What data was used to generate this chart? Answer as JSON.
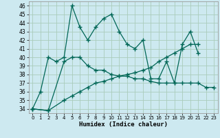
{
  "title": "",
  "xlabel": "Humidex (Indice chaleur)",
  "bg_color": "#cde9f0",
  "line_color": "#006655",
  "grid_color": "#aaccbb",
  "xlim": [
    -0.5,
    23.5
  ],
  "ylim": [
    33.5,
    46.5
  ],
  "yticks": [
    34,
    35,
    36,
    37,
    38,
    39,
    40,
    41,
    42,
    43,
    44,
    45,
    46
  ],
  "xticks": [
    0,
    1,
    2,
    3,
    4,
    5,
    6,
    7,
    8,
    9,
    10,
    11,
    12,
    13,
    14,
    15,
    16,
    17,
    18,
    19,
    20,
    21,
    22,
    23
  ],
  "line1_x": [
    0,
    1,
    2,
    3,
    4,
    5,
    6,
    7,
    8,
    9,
    10,
    11,
    12,
    13,
    14,
    15,
    16,
    17,
    18,
    19,
    20,
    21
  ],
  "line1_y": [
    34.0,
    36.0,
    40.0,
    39.5,
    40.0,
    46.0,
    43.5,
    42.0,
    43.5,
    44.5,
    45.0,
    43.0,
    41.5,
    41.0,
    42.0,
    37.5,
    37.5,
    39.5,
    37.0,
    41.5,
    43.0,
    40.5
  ],
  "line2_x": [
    0,
    2,
    4,
    5,
    6,
    7,
    8,
    9,
    10,
    11,
    12,
    13,
    14,
    15,
    16,
    17,
    18,
    19,
    20,
    21,
    22,
    23
  ],
  "line2_y": [
    34.0,
    33.8,
    39.5,
    40.0,
    40.0,
    39.0,
    38.5,
    38.5,
    38.0,
    37.8,
    37.8,
    37.5,
    37.5,
    37.2,
    37.0,
    37.0,
    37.0,
    37.0,
    37.0,
    37.0,
    36.5,
    36.5
  ],
  "line3_x": [
    0,
    2,
    4,
    5,
    6,
    7,
    8,
    9,
    10,
    11,
    12,
    13,
    14,
    15,
    16,
    17,
    18,
    19,
    20,
    21
  ],
  "line3_y": [
    34.0,
    33.8,
    35.0,
    35.5,
    36.0,
    36.5,
    37.0,
    37.2,
    37.5,
    37.8,
    38.0,
    38.2,
    38.5,
    38.8,
    39.5,
    40.0,
    40.5,
    41.0,
    41.5,
    41.5
  ]
}
